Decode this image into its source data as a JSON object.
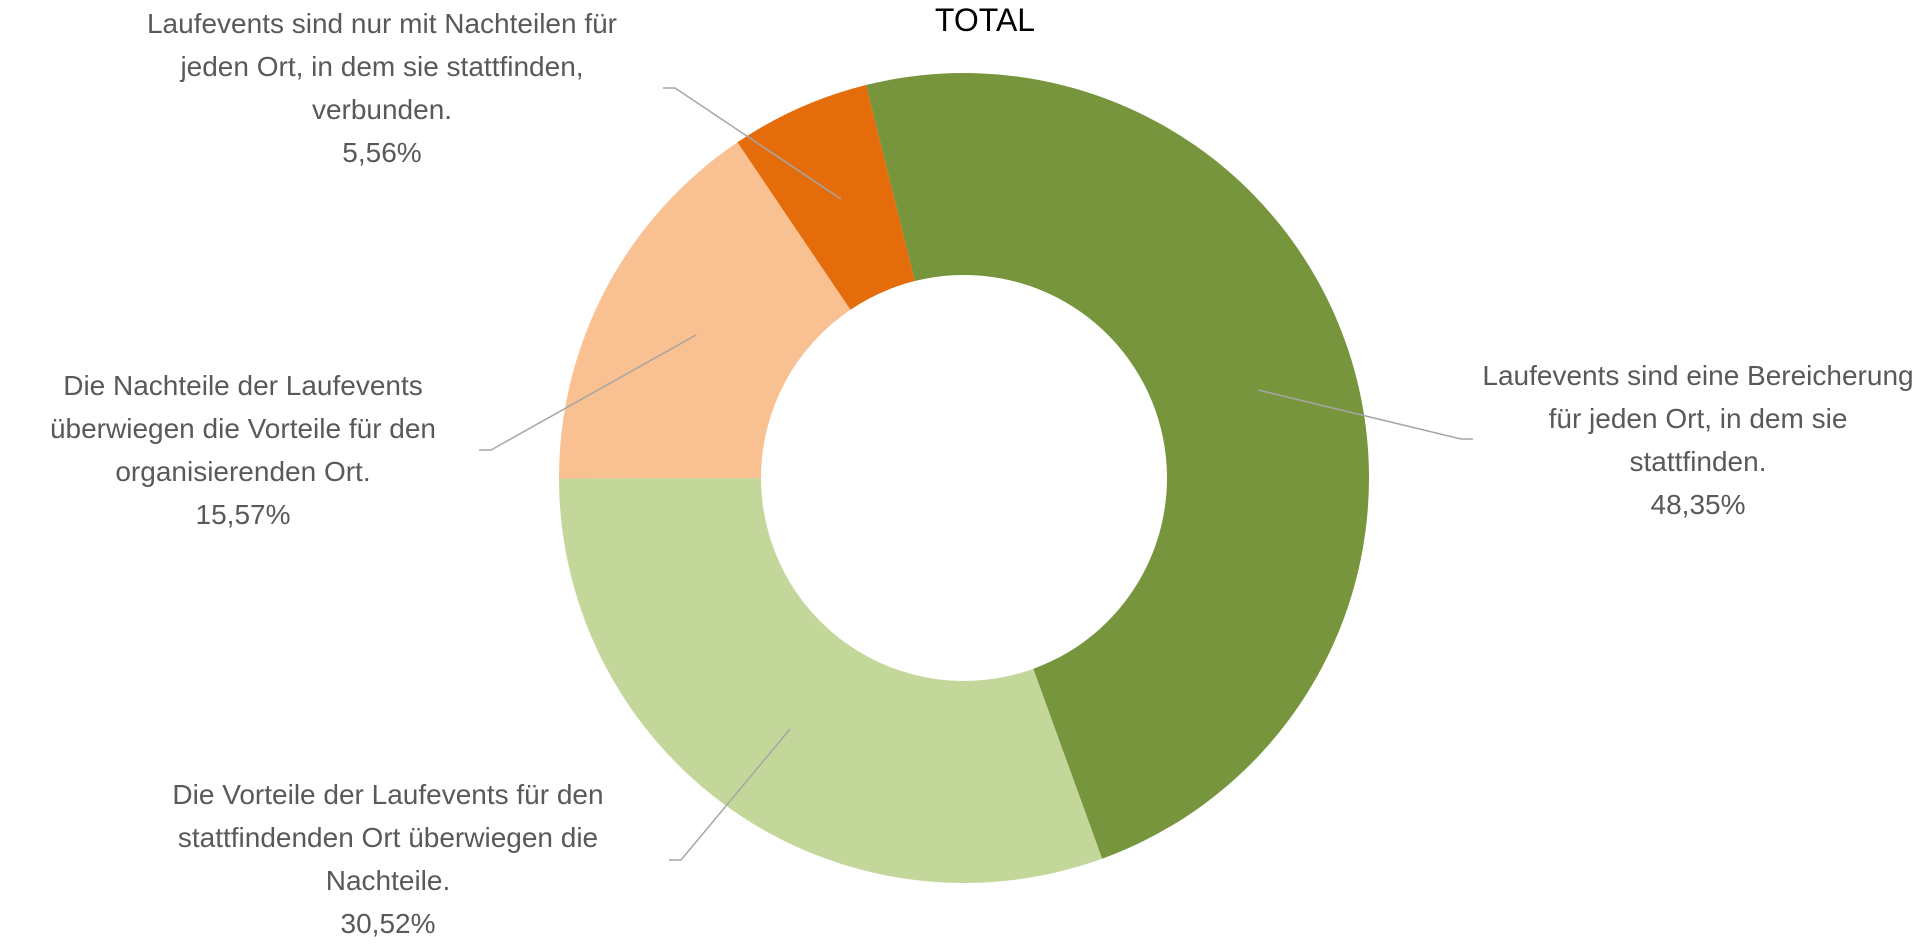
{
  "chart_data": {
    "type": "donut",
    "title": "TOTAL",
    "categories": [
      "Laufevents sind eine Bereicherung für jeden Ort, in dem sie stattfinden.",
      "Die Vorteile der Laufevents für den stattfindenden Ort überwiegen die Nachteile.",
      "Die Nachteile der Laufevents überwiegen die Vorteile für den organisierenden Ort.",
      "Laufevents sind nur mit Nachteilen für jeden Ort, in dem sie stattfinden, verbunden."
    ],
    "values": [
      48.35,
      30.52,
      15.57,
      5.56
    ],
    "value_labels": [
      "48,35%",
      "30,52%",
      "15,57%",
      "5,56%"
    ],
    "colors": [
      "#77953c",
      "#c4d79b",
      "#f9c091",
      "#e46c0a"
    ]
  }
}
